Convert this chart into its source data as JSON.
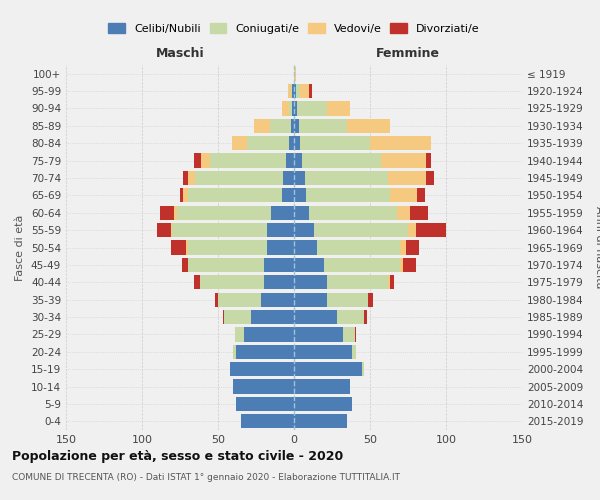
{
  "age_groups": [
    "0-4",
    "5-9",
    "10-14",
    "15-19",
    "20-24",
    "25-29",
    "30-34",
    "35-39",
    "40-44",
    "45-49",
    "50-54",
    "55-59",
    "60-64",
    "65-69",
    "70-74",
    "75-79",
    "80-84",
    "85-89",
    "90-94",
    "95-99",
    "100+"
  ],
  "birth_years": [
    "2015-2019",
    "2010-2014",
    "2005-2009",
    "2000-2004",
    "1995-1999",
    "1990-1994",
    "1985-1989",
    "1980-1984",
    "1975-1979",
    "1970-1974",
    "1965-1969",
    "1960-1964",
    "1955-1959",
    "1950-1954",
    "1945-1949",
    "1940-1944",
    "1935-1939",
    "1930-1934",
    "1925-1929",
    "1920-1924",
    "≤ 1919"
  ],
  "colors": {
    "celibi": "#4d7db5",
    "coniugati": "#c8d9a8",
    "vedovi": "#f5c97f",
    "divorziati": "#c0312b"
  },
  "maschi": {
    "celibi": [
      35,
      38,
      40,
      42,
      38,
      33,
      28,
      22,
      20,
      20,
      18,
      18,
      15,
      8,
      7,
      5,
      3,
      2,
      1,
      1,
      0
    ],
    "coniugati": [
      0,
      0,
      0,
      0,
      2,
      6,
      18,
      28,
      42,
      50,
      52,
      62,
      62,
      62,
      58,
      50,
      28,
      14,
      2,
      1,
      0
    ],
    "vedovi": [
      0,
      0,
      0,
      0,
      0,
      0,
      0,
      0,
      0,
      0,
      1,
      1,
      2,
      3,
      5,
      6,
      10,
      10,
      5,
      2,
      0
    ],
    "divorziati": [
      0,
      0,
      0,
      0,
      0,
      0,
      1,
      2,
      4,
      4,
      10,
      9,
      9,
      2,
      3,
      5,
      0,
      0,
      0,
      0,
      0
    ]
  },
  "femmine": {
    "celibi": [
      35,
      38,
      37,
      45,
      38,
      32,
      28,
      22,
      22,
      20,
      15,
      13,
      10,
      8,
      7,
      5,
      4,
      3,
      2,
      1,
      0
    ],
    "coniugati": [
      0,
      0,
      0,
      1,
      3,
      8,
      18,
      27,
      40,
      50,
      55,
      62,
      58,
      55,
      55,
      52,
      46,
      32,
      20,
      3,
      0
    ],
    "vedovi": [
      0,
      0,
      0,
      0,
      0,
      0,
      0,
      0,
      1,
      2,
      4,
      5,
      8,
      18,
      25,
      30,
      40,
      28,
      15,
      6,
      1
    ],
    "divorziati": [
      0,
      0,
      0,
      0,
      0,
      1,
      2,
      3,
      3,
      8,
      8,
      20,
      12,
      5,
      5,
      3,
      0,
      0,
      0,
      2,
      0
    ]
  },
  "xlim": 150,
  "title": "Popolazione per età, sesso e stato civile - 2020",
  "subtitle": "COMUNE DI TRECENTA (RO) - Dati ISTAT 1° gennaio 2020 - Elaborazione TUTTITALIA.IT",
  "ylabel_left": "Fasce di età",
  "ylabel_right": "Anni di nascita",
  "xlabel_left": "Maschi",
  "xlabel_right": "Femmine"
}
